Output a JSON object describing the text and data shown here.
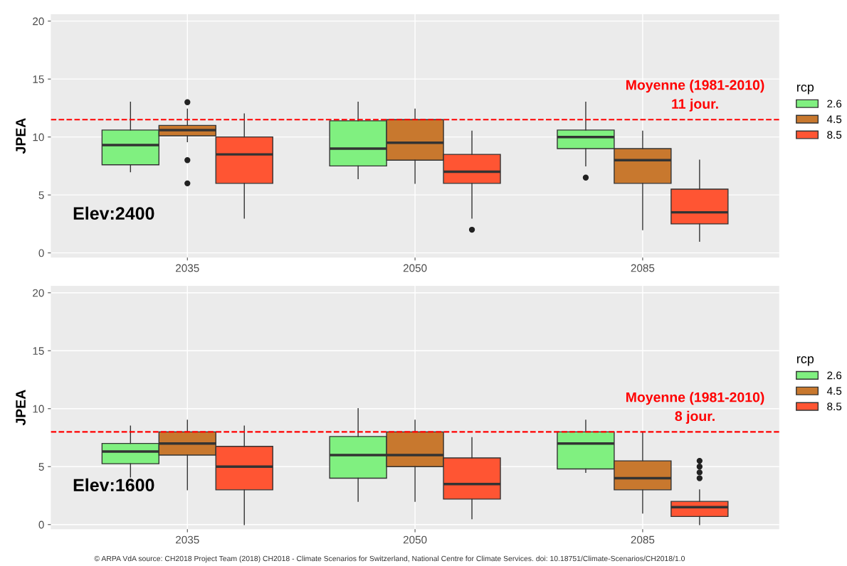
{
  "chart_data": [
    {
      "type": "box",
      "ylabel": "JPEA",
      "categories": [
        "2035",
        "2050",
        "2085"
      ],
      "ylim": [
        -0.4,
        20.6
      ],
      "yticks": [
        0,
        5,
        10,
        15,
        20
      ],
      "grid": true,
      "legend": "right",
      "legend_title": "rcp",
      "ref_lines": [
        {
          "axis": "y",
          "value": 11.5,
          "label": "Moyenne (1981-2010)\n11 jour.",
          "color": "#ff0000",
          "line_style": "dashed"
        }
      ],
      "annotations": [
        "Elev:2400"
      ],
      "series": [
        {
          "name": "2.6",
          "color": "#80f080",
          "boxes": [
            {
              "low": 7.0,
              "q1": 7.6,
              "median": 9.3,
              "q3": 10.6,
              "high": 13.0
            },
            {
              "low": 6.4,
              "q1": 7.5,
              "median": 9.0,
              "q3": 11.4,
              "high": 13.0
            },
            {
              "low": 7.5,
              "q1": 9.0,
              "median": 10.0,
              "q3": 10.6,
              "high": 13.0,
              "outliers": [
                6.5
              ]
            }
          ]
        },
        {
          "name": "4.5",
          "color": "#c8782e",
          "boxes": [
            {
              "low": 9.6,
              "q1": 10.1,
              "median": 10.6,
              "q3": 11.0,
              "high": 12.4,
              "outliers": [
                13.0,
                8.0,
                6.0
              ]
            },
            {
              "low": 6.0,
              "q1": 8.0,
              "median": 9.5,
              "q3": 11.5,
              "high": 12.4
            },
            {
              "low": 2.0,
              "q1": 6.0,
              "median": 8.0,
              "q3": 9.0,
              "high": 10.5
            }
          ]
        },
        {
          "name": "8.5",
          "color": "#ff5533",
          "boxes": [
            {
              "low": 3.0,
              "q1": 6.0,
              "median": 8.5,
              "q3": 10.0,
              "high": 12.0
            },
            {
              "low": 3.0,
              "q1": 6.0,
              "median": 7.0,
              "q3": 8.5,
              "high": 10.5,
              "outliers": [
                2.0
              ]
            },
            {
              "low": 1.0,
              "q1": 2.5,
              "median": 3.5,
              "q3": 5.5,
              "high": 8.0
            }
          ]
        }
      ]
    },
    {
      "type": "box",
      "ylabel": "JPEA",
      "categories": [
        "2035",
        "2050",
        "2085"
      ],
      "ylim": [
        -0.4,
        20.6
      ],
      "yticks": [
        0,
        5,
        10,
        15,
        20
      ],
      "grid": true,
      "legend": "right",
      "legend_title": "rcp",
      "ref_lines": [
        {
          "axis": "y",
          "value": 8,
          "label": "Moyenne (1981-2010)\n8 jour.",
          "color": "#ff0000",
          "line_style": "dashed"
        }
      ],
      "annotations": [
        "Elev:1600",
        "© ARPA VdA source: CH2018 Project Team (2018) CH2018 - Climate Scenarios for Switzerland, National Centre for Climate Services. doi: 10.18751/Climate-Scenarios/CH2018/1.0"
      ],
      "series": [
        {
          "name": "2.6",
          "color": "#80f080",
          "boxes": [
            {
              "low": 4.1,
              "q1": 5.25,
              "median": 6.3,
              "q3": 7.0,
              "high": 8.5
            },
            {
              "low": 2.0,
              "q1": 4.0,
              "median": 6.0,
              "q3": 7.6,
              "high": 10.0
            },
            {
              "low": 4.5,
              "q1": 4.8,
              "median": 7.0,
              "q3": 8.0,
              "high": 9.0
            }
          ]
        },
        {
          "name": "4.5",
          "color": "#c8782e",
          "boxes": [
            {
              "low": 3.0,
              "q1": 6.0,
              "median": 7.0,
              "q3": 8.0,
              "high": 9.0
            },
            {
              "low": 2.0,
              "q1": 5.0,
              "median": 6.0,
              "q3": 8.0,
              "high": 9.0
            },
            {
              "low": 1.0,
              "q1": 3.0,
              "median": 4.0,
              "q3": 5.5,
              "high": 8.0
            }
          ]
        },
        {
          "name": "8.5",
          "color": "#ff5533",
          "boxes": [
            {
              "low": 0.0,
              "q1": 3.0,
              "median": 5.0,
              "q3": 6.75,
              "high": 8.5
            },
            {
              "low": 0.5,
              "q1": 2.2,
              "median": 3.5,
              "q3": 5.75,
              "high": 7.5
            },
            {
              "low": 0.0,
              "q1": 0.7,
              "median": 1.5,
              "q3": 2.0,
              "high": 3.0,
              "outliers": [
                5.5,
                5.0,
                4.5,
                4.0
              ]
            }
          ]
        }
      ]
    }
  ]
}
